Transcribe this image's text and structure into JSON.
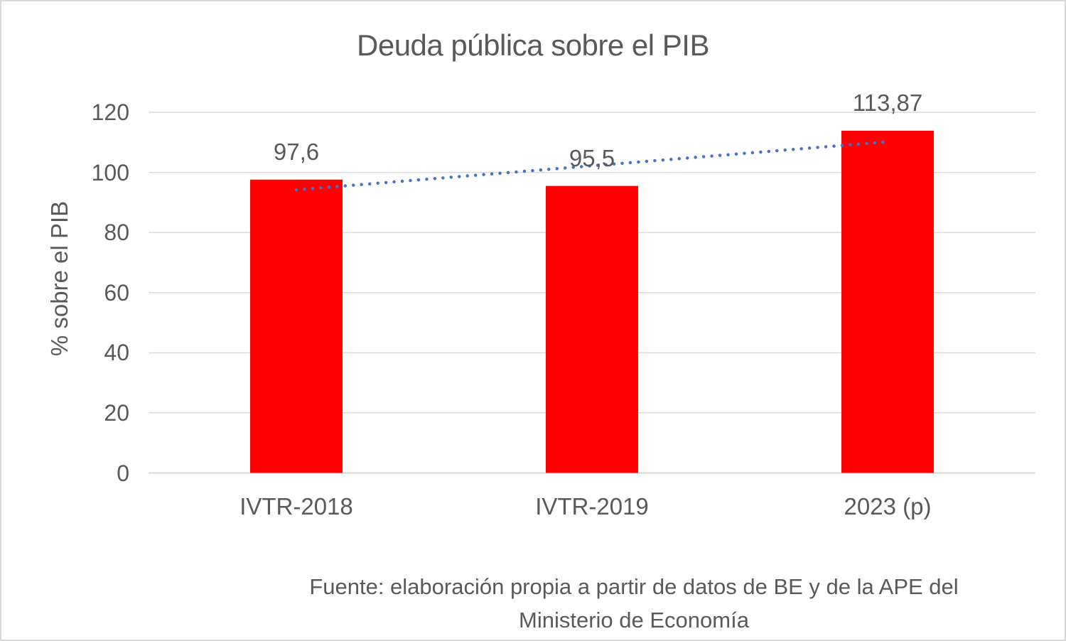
{
  "chart_data": {
    "type": "bar",
    "title": "Deuda pública sobre el PIB",
    "ylabel": "% sobre el PIB",
    "xlabel": "",
    "categories": [
      "IVTR-2018",
      "IVTR-2019",
      "2023 (p)"
    ],
    "values": [
      97.6,
      95.5,
      113.87
    ],
    "data_labels": [
      "97,6",
      "95,5",
      "113,87"
    ],
    "ylim": [
      0,
      120
    ],
    "yticks": [
      0,
      20,
      40,
      60,
      80,
      100,
      120
    ],
    "grid": true,
    "legend": "none",
    "bar_color": "#ff0000",
    "trendline": {
      "type": "linear",
      "style": "dotted",
      "color": "#4472c4",
      "start_value": 94.2,
      "end_value": 110.2
    },
    "source_lines": [
      "Fuente: elaboración propia a partir de datos de BE y de la APE del",
      "Ministerio de Economía"
    ]
  },
  "colors": {
    "text": "#595959",
    "gridline": "#d9d9d9",
    "background": "#ffffff",
    "frame_border": "#d9d9d9"
  }
}
